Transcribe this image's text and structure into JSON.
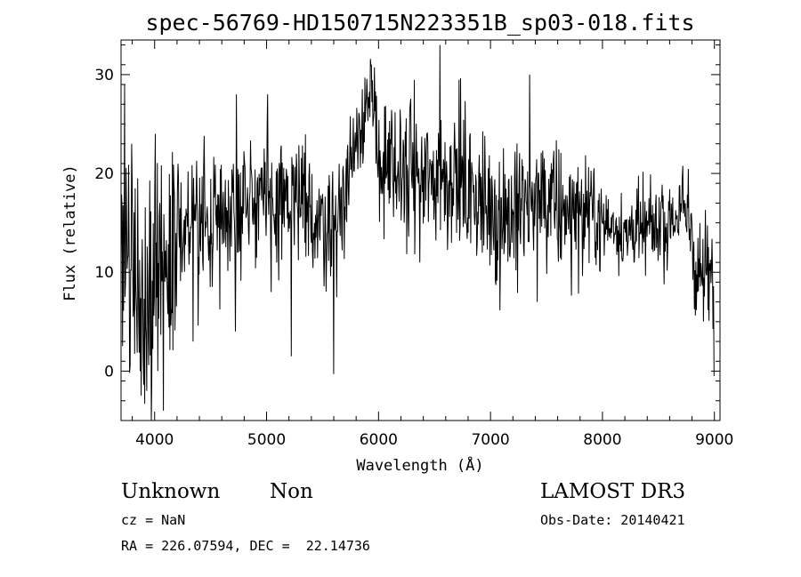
{
  "chart_data": {
    "type": "line",
    "title": "spec-56769-HD150715N223351B_sp03-018.fits",
    "xlabel": "Wavelength (Å)",
    "ylabel": "Flux (relative)",
    "xlim": [
      3700,
      9050
    ],
    "ylim": [
      -5,
      33.5
    ],
    "xticks": [
      "4000",
      "5000",
      "6000",
      "7000",
      "8000",
      "9000"
    ],
    "yticks": [
      "0",
      "10",
      "20",
      "30"
    ],
    "line_color": "#000000",
    "grid": false,
    "series": [
      {
        "x": [
          3700,
          3730,
          3760,
          3800,
          3850,
          3900,
          3950,
          4000,
          4050,
          4100,
          4150,
          4200,
          4300,
          4400,
          4500,
          4600,
          4700,
          4800,
          4900,
          5000,
          5100,
          5200,
          5300,
          5400,
          5500,
          5600,
          5700,
          5750,
          5800,
          5850,
          5900,
          5950,
          6000,
          6050,
          6100,
          6200,
          6300,
          6400,
          6500,
          6550,
          6600,
          6700,
          6800,
          6900,
          7000,
          7100,
          7200,
          7300,
          7400,
          7500,
          7600,
          7700,
          7800,
          7900,
          8000,
          8100,
          8200,
          8300,
          8400,
          8500,
          8600,
          8700,
          8750,
          8800,
          8850,
          8900,
          8950,
          9000
        ],
        "y": [
          3,
          14,
          10,
          12,
          8,
          9,
          10,
          10,
          11,
          12,
          13,
          14,
          14,
          15,
          15,
          16,
          17,
          17,
          18,
          17,
          17,
          17,
          17,
          16,
          15,
          15,
          18,
          21,
          24,
          26,
          27,
          26,
          22,
          20,
          20,
          20,
          20,
          19,
          19,
          20,
          20,
          20,
          18,
          17,
          17,
          16,
          16,
          16,
          17,
          17,
          16,
          16,
          16,
          16,
          15,
          15,
          14,
          14,
          14,
          15,
          15,
          16,
          16,
          14,
          10,
          11,
          10,
          9
        ],
        "amplitude": [
          10,
          8,
          8,
          8,
          8,
          9,
          9,
          9,
          8,
          7,
          7,
          6,
          5,
          5,
          4,
          4,
          4,
          4,
          4,
          4,
          4,
          4,
          4,
          4,
          4,
          4,
          4,
          3,
          3,
          3,
          3,
          4,
          5,
          5,
          5,
          5,
          5,
          5,
          5,
          5,
          5,
          5,
          5,
          5,
          5,
          5,
          5,
          4,
          4,
          4,
          4,
          4,
          4,
          3,
          3,
          3,
          3,
          3,
          3,
          3,
          3,
          3,
          3,
          4,
          4,
          3,
          3,
          3
        ]
      }
    ],
    "features": [
      {
        "x": 3795,
        "y": 23
      },
      {
        "x": 3835,
        "y": 7
      },
      {
        "x": 3870,
        "y": 0
      },
      {
        "x": 3930,
        "y": -2
      },
      {
        "x": 3970,
        "y": -5
      },
      {
        "x": 4005,
        "y": 24
      },
      {
        "x": 4030,
        "y": 0
      },
      {
        "x": 4080,
        "y": -4
      },
      {
        "x": 4345,
        "y": 3
      },
      {
        "x": 4720,
        "y": 4
      },
      {
        "x": 4730,
        "y": 28
      },
      {
        "x": 5010,
        "y": 28
      },
      {
        "x": 5040,
        "y": 8
      },
      {
        "x": 5220,
        "y": 1.5
      },
      {
        "x": 5600,
        "y": -0.3
      },
      {
        "x": 5935,
        "y": 31
      },
      {
        "x": 6550,
        "y": 33
      },
      {
        "x": 7350,
        "y": 30
      },
      {
        "x": 7415,
        "y": 7
      },
      {
        "x": 8900,
        "y": 5
      },
      {
        "x": 9000,
        "y": -0.5
      }
    ]
  },
  "info": {
    "object_class": "Unknown",
    "object_subclass": "Non",
    "survey": "LAMOST DR3",
    "cz": "cz = NaN",
    "obs_date": "Obs-Date: 20140421",
    "coordinates": "RA = 226.07594, DEC =  22.14736"
  }
}
